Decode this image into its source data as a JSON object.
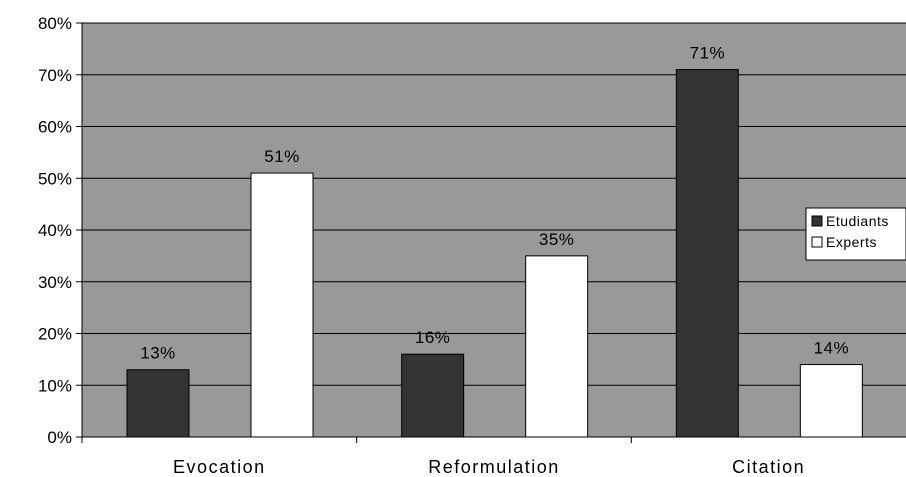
{
  "chart_data": {
    "type": "bar",
    "categories": [
      "Evocation",
      "Reformulation",
      "Citation"
    ],
    "series": [
      {
        "name": "Etudiants",
        "values": [
          13,
          16,
          71
        ],
        "labels": [
          "13%",
          "16%",
          "71%"
        ],
        "color": "#333333"
      },
      {
        "name": "Experts",
        "values": [
          51,
          35,
          14
        ],
        "labels": [
          "51%",
          "35%",
          "14%"
        ],
        "color": "#ffffff"
      }
    ],
    "ylim": [
      0,
      80
    ],
    "yticks": [
      0,
      10,
      20,
      30,
      40,
      50,
      60,
      70,
      80
    ],
    "ytick_labels": [
      "0%",
      "10%",
      "20%",
      "30%",
      "40%",
      "50%",
      "60%",
      "70%",
      "80%"
    ],
    "title": "",
    "xlabel": "",
    "ylabel": "",
    "grid": true,
    "legend": "right",
    "plot_background": "#999999"
  }
}
